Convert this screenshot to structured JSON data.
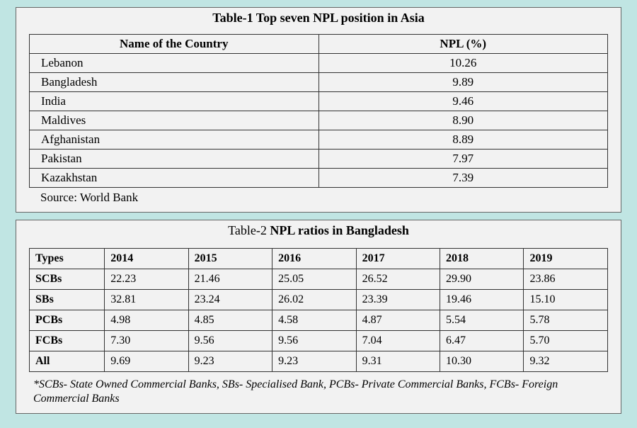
{
  "background_color": "#c0e5e3",
  "panel_bg": "#f2f2f2",
  "border_color": "#333333",
  "font_family": "Times New Roman",
  "table1": {
    "title": "Table-1 Top seven NPL position in Asia",
    "columns": [
      "Name of the Country",
      "NPL (%)"
    ],
    "column_widths_pct": [
      50,
      50
    ],
    "rows": [
      [
        "Lebanon",
        "10.26"
      ],
      [
        "Bangladesh",
        "9.89"
      ],
      [
        "India",
        "9.46"
      ],
      [
        "Maldives",
        "8.90"
      ],
      [
        "Afghanistan",
        "8.89"
      ],
      [
        "Pakistan",
        "7.97"
      ],
      [
        "Kazakhstan",
        "7.39"
      ]
    ],
    "source": "Source: World Bank"
  },
  "table2": {
    "title_prefix": "Table-2  ",
    "title_main": "NPL ratios in Bangladesh",
    "columns": [
      "Types",
      "2014",
      "2015",
      "2016",
      "2017",
      "2018",
      "2019"
    ],
    "column_widths_pct": [
      13,
      14.5,
      14.5,
      14.5,
      14.5,
      14.5,
      14.5
    ],
    "rows": [
      [
        "SCBs",
        "22.23",
        "21.46",
        "25.05",
        "26.52",
        "29.90",
        "23.86"
      ],
      [
        "SBs",
        "32.81",
        "23.24",
        "26.02",
        "23.39",
        "19.46",
        "15.10"
      ],
      [
        "PCBs",
        "4.98",
        "4.85",
        "4.58",
        "4.87",
        "5.54",
        "5.78"
      ],
      [
        "FCBs",
        "7.30",
        "9.56",
        "9.56",
        "7.04",
        "6.47",
        "5.70"
      ],
      [
        "All",
        "9.69",
        "9.23",
        "9.23",
        "9.31",
        "10.30",
        "9.32"
      ]
    ],
    "footnote": "*SCBs- State Owned Commercial Banks, SBs- Specialised Bank, PCBs- Private Commercial Banks, FCBs- Foreign Commercial Banks"
  }
}
